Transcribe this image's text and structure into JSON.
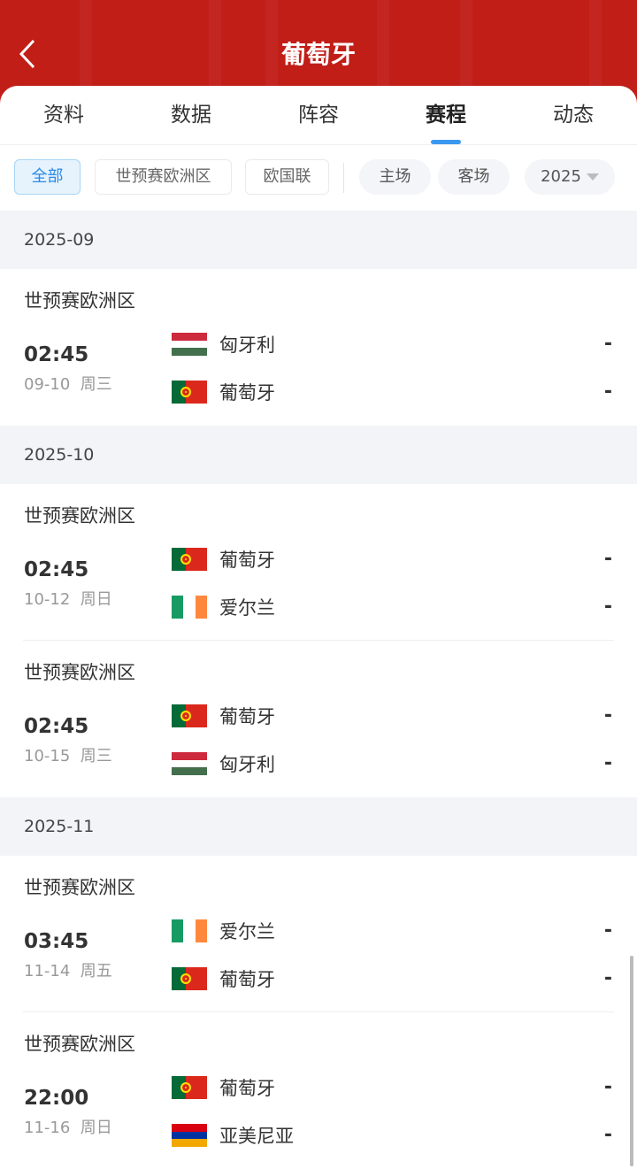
{
  "header": {
    "title": "葡萄牙",
    "back_icon": "chevron-left-icon"
  },
  "tabs": [
    {
      "label": "资料"
    },
    {
      "label": "数据"
    },
    {
      "label": "阵容"
    },
    {
      "label": "赛程",
      "active": true
    },
    {
      "label": "动态"
    }
  ],
  "filters": {
    "competitions": [
      "全部",
      "世预赛欧洲区",
      "欧国联"
    ],
    "venue": [
      "主场",
      "客场"
    ],
    "year": "2025",
    "selected": "全部"
  },
  "colors": {
    "header_red": "#c11e18",
    "accent_blue": "#3a98f0"
  },
  "months": [
    {
      "label": "2025-09",
      "matches": [
        {
          "league": "世预赛欧洲区",
          "time": "02:45",
          "date": "09-10  周三",
          "home": {
            "name": "匈牙利",
            "flag": "hungary"
          },
          "away": {
            "name": "葡萄牙",
            "flag": "portugal"
          },
          "home_score": "-",
          "away_score": "-"
        }
      ]
    },
    {
      "label": "2025-10",
      "matches": [
        {
          "league": "世预赛欧洲区",
          "time": "02:45",
          "date": "10-12  周日",
          "home": {
            "name": "葡萄牙",
            "flag": "portugal"
          },
          "away": {
            "name": "爱尔兰",
            "flag": "ireland"
          },
          "home_score": "-",
          "away_score": "-"
        },
        {
          "league": "世预赛欧洲区",
          "time": "02:45",
          "date": "10-15  周三",
          "home": {
            "name": "葡萄牙",
            "flag": "portugal"
          },
          "away": {
            "name": "匈牙利",
            "flag": "hungary"
          },
          "home_score": "-",
          "away_score": "-"
        }
      ]
    },
    {
      "label": "2025-11",
      "matches": [
        {
          "league": "世预赛欧洲区",
          "time": "03:45",
          "date": "11-14  周五",
          "home": {
            "name": "爱尔兰",
            "flag": "ireland"
          },
          "away": {
            "name": "葡萄牙",
            "flag": "portugal"
          },
          "home_score": "-",
          "away_score": "-"
        },
        {
          "league": "世预赛欧洲区",
          "time": "22:00",
          "date": "11-16  周日",
          "home": {
            "name": "葡萄牙",
            "flag": "portugal"
          },
          "away": {
            "name": "亚美尼亚",
            "flag": "armenia"
          },
          "home_score": "-",
          "away_score": "-"
        }
      ]
    }
  ]
}
